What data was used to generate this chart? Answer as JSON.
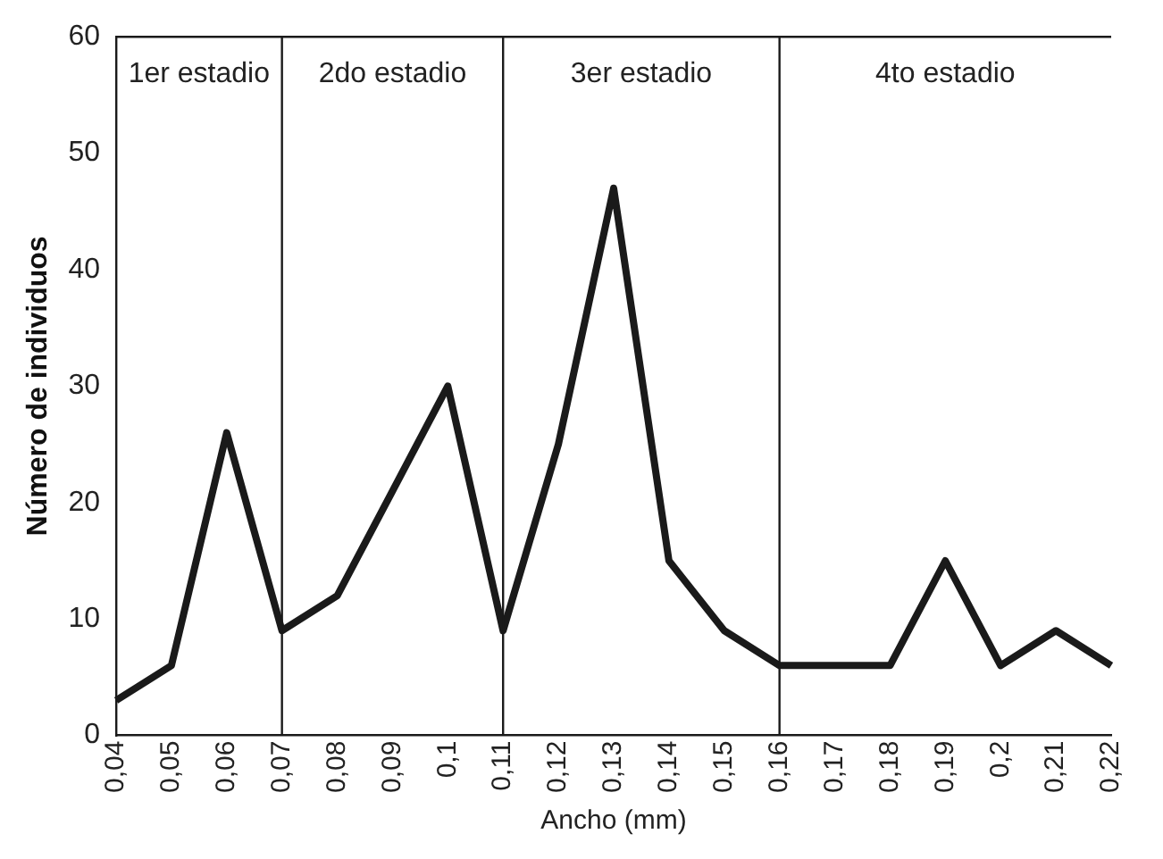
{
  "chart_data": {
    "type": "line",
    "xlabel": "Ancho (mm)",
    "ylabel": "Número de individuos",
    "categories": [
      "0,04",
      "0,05",
      "0,06",
      "0,07",
      "0,08",
      "0,09",
      "0,1",
      "0,11",
      "0,12",
      "0,13",
      "0,14",
      "0,15",
      "0,16",
      "0,17",
      "0,18",
      "0,19",
      "0,2",
      "0,21",
      "0,22"
    ],
    "series": [
      {
        "color": "#1a1a1a",
        "values": [
          3,
          6,
          26,
          9,
          12,
          21,
          30,
          9,
          25,
          47,
          15,
          9,
          6,
          6,
          6,
          15,
          6,
          9,
          6
        ]
      }
    ],
    "ylim": [
      0,
      60
    ],
    "yticks": [
      0,
      10,
      20,
      30,
      40,
      50,
      60
    ],
    "grid": false,
    "legend": false,
    "marker": "none",
    "line_style": "solid",
    "ref_lines": [
      {
        "axis": "x",
        "value": "0,07"
      },
      {
        "axis": "x",
        "value": "0,11"
      },
      {
        "axis": "x",
        "value": "0,16"
      }
    ],
    "annotations": [
      "1er estadio",
      "2do estadio",
      "3er estadio",
      "4to estadio"
    ]
  }
}
